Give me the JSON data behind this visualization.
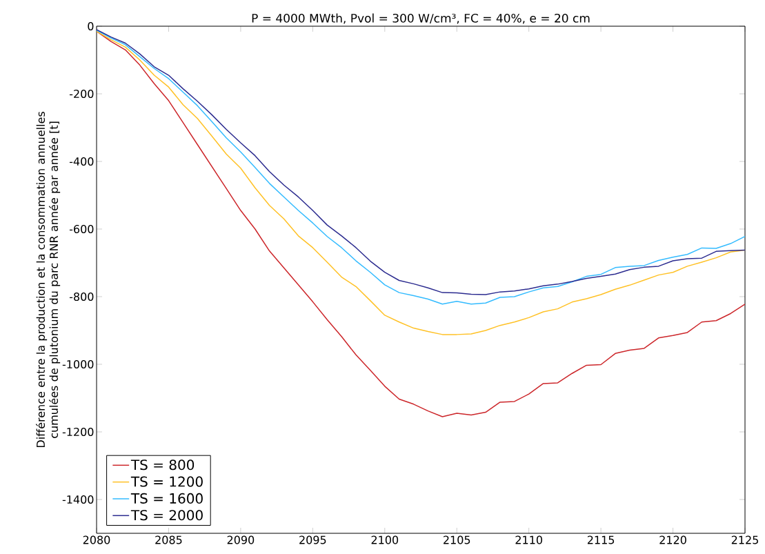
{
  "chart_data": {
    "type": "line",
    "title": "P = 4000 MWth, Pvol = 300 W/cm³, FC = 40%, e = 20 cm",
    "ylabel": "Différence entre la production et la consommation annuelles cumulées de plutonium du parc RNR année par année [t]",
    "x": [
      2080,
      2081,
      2082,
      2083,
      2084,
      2085,
      2086,
      2087,
      2088,
      2089,
      2090,
      2091,
      2092,
      2093,
      2094,
      2095,
      2096,
      2097,
      2098,
      2099,
      2100,
      2101,
      2102,
      2103,
      2104,
      2105,
      2106,
      2107,
      2108,
      2109,
      2110,
      2111,
      2112,
      2113,
      2114,
      2115,
      2116,
      2117,
      2118,
      2119,
      2120,
      2121,
      2122,
      2123,
      2124,
      2125
    ],
    "series": [
      {
        "name": "TS = 800",
        "color": "#cc2529",
        "values": [
          -15,
          -45,
          -70,
          -115,
          -170,
          -220,
          -285,
          -350,
          -415,
          -480,
          -545,
          -600,
          -665,
          -715,
          -765,
          -815,
          -868,
          -918,
          -972,
          -1018,
          -1065,
          -1103,
          -1118,
          -1138,
          -1155,
          -1145,
          -1150,
          -1142,
          -1112,
          -1110,
          -1088,
          -1057,
          -1055,
          -1027,
          -1003,
          -1001,
          -968,
          -958,
          -953,
          -922,
          -915,
          -906,
          -875,
          -871,
          -850,
          -822
        ]
      },
      {
        "name": "TS = 1200",
        "color": "#ffc125",
        "values": [
          -15,
          -40,
          -62,
          -100,
          -145,
          -180,
          -232,
          -273,
          -325,
          -378,
          -420,
          -478,
          -530,
          -570,
          -620,
          -655,
          -698,
          -742,
          -770,
          -812,
          -855,
          -875,
          -893,
          -903,
          -912,
          -912,
          -910,
          -900,
          -885,
          -875,
          -862,
          -845,
          -836,
          -816,
          -806,
          -794,
          -778,
          -766,
          -751,
          -736,
          -728,
          -710,
          -698,
          -685,
          -668,
          -662
        ]
      },
      {
        "name": "TS = 1600",
        "color": "#33bbff",
        "values": [
          -12,
          -35,
          -55,
          -90,
          -125,
          -155,
          -195,
          -235,
          -282,
          -330,
          -372,
          -418,
          -465,
          -505,
          -545,
          -582,
          -622,
          -655,
          -694,
          -728,
          -765,
          -788,
          -797,
          -807,
          -822,
          -814,
          -822,
          -819,
          -802,
          -800,
          -786,
          -774,
          -770,
          -756,
          -740,
          -734,
          -714,
          -710,
          -708,
          -693,
          -683,
          -675,
          -656,
          -657,
          -643,
          -622
        ]
      },
      {
        "name": "TS = 2000",
        "color": "#2b2b8f",
        "values": [
          -10,
          -32,
          -50,
          -82,
          -120,
          -145,
          -185,
          -222,
          -262,
          -305,
          -345,
          -383,
          -430,
          -470,
          -505,
          -545,
          -588,
          -620,
          -655,
          -695,
          -728,
          -752,
          -762,
          -774,
          -788,
          -789,
          -793,
          -794,
          -786,
          -783,
          -777,
          -768,
          -763,
          -755,
          -746,
          -740,
          -733,
          -720,
          -713,
          -710,
          -694,
          -688,
          -686,
          -666,
          -664,
          -662
        ]
      }
    ],
    "xlim": [
      2080,
      2125
    ],
    "xticks": [
      2080,
      2085,
      2090,
      2095,
      2100,
      2105,
      2110,
      2115,
      2120,
      2125
    ],
    "ylim": [
      -1500,
      0
    ],
    "yticks": [
      -1400,
      -1200,
      -1000,
      -800,
      -600,
      -400,
      -200,
      0
    ],
    "legend": "bottom left",
    "grid": false,
    "marker": "none",
    "line_style": "solid"
  }
}
